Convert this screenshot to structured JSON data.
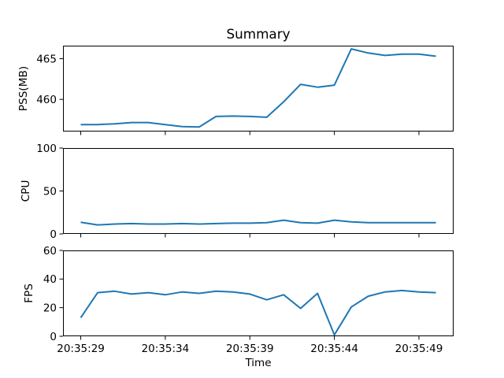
{
  "figure": {
    "title": "Summary",
    "xlabel": "Time",
    "line_color": "#1f77b4",
    "spine_color": "#000000",
    "background_color": "#ffffff"
  },
  "x_axis": {
    "unit": "seconds after 20:35:00",
    "xlim": [
      27.95,
      51.05
    ],
    "tick_positions": [
      29,
      34,
      39,
      44,
      49
    ],
    "tick_labels": [
      "20:35:29",
      "20:35:34",
      "20:35:39",
      "20:35:44",
      "20:35:49"
    ]
  },
  "chart_data": [
    {
      "name": "pss",
      "type": "line",
      "ylabel": "PSS(MB)",
      "ylim": [
        456.05,
        466.6
      ],
      "yticks": [
        460,
        465
      ],
      "grid": false,
      "show_x_tick_labels": false,
      "x": [
        29,
        30,
        31,
        32,
        33,
        34,
        35,
        36,
        37,
        38,
        39,
        40,
        41,
        42,
        43,
        44,
        45,
        46,
        47,
        48,
        49,
        50
      ],
      "values": [
        456.9,
        456.9,
        457.0,
        457.15,
        457.15,
        456.9,
        456.65,
        456.6,
        457.9,
        457.95,
        457.9,
        457.8,
        459.7,
        461.85,
        461.5,
        461.75,
        466.2,
        465.7,
        465.4,
        465.55,
        465.55,
        465.3
      ]
    },
    {
      "name": "cpu",
      "type": "line",
      "ylabel": "CPU",
      "ylim": [
        0,
        100
      ],
      "yticks": [
        0,
        50,
        100
      ],
      "grid": false,
      "show_x_tick_labels": false,
      "x": [
        29,
        30,
        31,
        32,
        33,
        34,
        35,
        36,
        37,
        38,
        39,
        40,
        41,
        42,
        43,
        44,
        45,
        46,
        47,
        48,
        49,
        50
      ],
      "values": [
        13.5,
        10.5,
        11.5,
        12,
        11.5,
        11.5,
        12,
        11.5,
        12,
        12.5,
        12.5,
        13,
        16,
        13,
        12.5,
        16,
        14,
        13,
        13,
        13,
        13,
        13
      ]
    },
    {
      "name": "fps",
      "type": "line",
      "ylabel": "FPS",
      "ylim": [
        0,
        60
      ],
      "yticks": [
        0,
        20,
        40,
        60
      ],
      "grid": false,
      "show_x_tick_labels": true,
      "x": [
        29,
        30,
        31,
        32,
        33,
        34,
        35,
        36,
        37,
        38,
        39,
        40,
        41,
        42,
        43,
        44,
        45,
        46,
        47,
        48,
        49,
        50
      ],
      "values": [
        13,
        30.5,
        31.5,
        29.5,
        30.5,
        29,
        31,
        30,
        31.5,
        31,
        29.5,
        25.5,
        29,
        19.5,
        30,
        1,
        20.5,
        28,
        31,
        32,
        31,
        30.5
      ]
    }
  ]
}
